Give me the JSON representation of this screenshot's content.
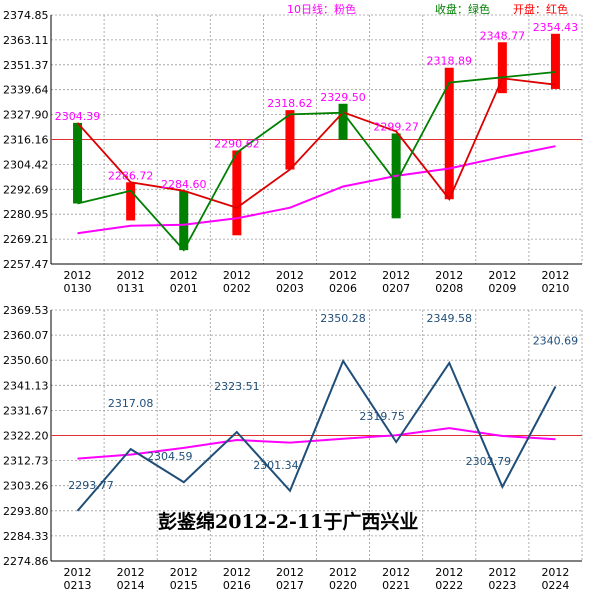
{
  "colors": {
    "bar_up": "#ff0000",
    "bar_down": "#008000",
    "close_line": "#008000",
    "ma_line": "#ff00ff",
    "open_line": "#dd0000",
    "ref_line": "#e03030",
    "value_label": "#ff00ff",
    "bottom_line": "#1f4e79",
    "bottom_label": "#1f4e79",
    "legend_ma": "#ff00ff",
    "legend_close": "#008000",
    "legend_open": "#ff0000",
    "grid": "#999999"
  },
  "chart_data": [
    {
      "type": "bar",
      "title": "",
      "legend": [
        {
          "label": "10日线：粉色",
          "color": "#ff00ff"
        },
        {
          "label": "收盘：绿色",
          "color": "#008000"
        },
        {
          "label": "开盘：红色",
          "color": "#ff0000"
        }
      ],
      "categories": [
        "20120130",
        "20120131",
        "20120201",
        "20120202",
        "20120203",
        "20120206",
        "20120207",
        "20120208",
        "20120209",
        "20120210"
      ],
      "y_ticks": [
        "2374.85",
        "2363.11",
        "2351.37",
        "2339.64",
        "2327.90",
        "2316.16",
        "2304.42",
        "2292.69",
        "2280.95",
        "2269.21",
        "2257.47"
      ],
      "ylim": [
        2257.47,
        2374.85
      ],
      "series": [
        {
          "name": "开盘",
          "values": [
            2324.0,
            2296.0,
            2292.0,
            2284.0,
            2302.0,
            2329.0,
            2320.0,
            2288.0,
            2345.0,
            2342.0
          ]
        },
        {
          "name": "收盘",
          "values": [
            2286.0,
            2292.0,
            2264.0,
            2310.0,
            2328.0,
            2328.8,
            2296.0,
            2343.0,
            2345.5,
            2348.0
          ]
        },
        {
          "name": "10日线",
          "values": [
            2272.0,
            2275.5,
            2276.0,
            2279.0,
            2284.0,
            2294.0,
            2299.0,
            2302.5,
            2308.0,
            2313.0
          ]
        }
      ],
      "bar_top": [
        2324.0,
        2296.0,
        2292.0,
        2311.0,
        2330.0,
        2333.0,
        2319.0,
        2350.0,
        2362.0,
        2366.0
      ],
      "bar_bottom": [
        2286.0,
        2278.0,
        2264.0,
        2271.0,
        2302.0,
        2316.0,
        2279.0,
        2288.0,
        2338.0,
        2340.0
      ],
      "bar_direction": [
        "down",
        "up",
        "down",
        "up",
        "up",
        "down",
        "down",
        "up",
        "up",
        "up"
      ],
      "reference_line": 2316.16,
      "value_labels": [
        "2304.39",
        "2286.72",
        "2284.60",
        "2290.62",
        "2318.62",
        "2329.50",
        "2299.27",
        "2318.89",
        "2348.77",
        "2354.43"
      ]
    },
    {
      "type": "line",
      "title": "",
      "categories": [
        "20120213",
        "20120214",
        "20120215",
        "20120216",
        "20120217",
        "20120220",
        "20120221",
        "20120222",
        "20120223",
        "20120224"
      ],
      "y_ticks": [
        "2369.53",
        "2360.07",
        "2350.60",
        "2341.13",
        "2331.67",
        "2322.20",
        "2312.73",
        "2303.26",
        "2293.80",
        "2284.33",
        "2274.86"
      ],
      "ylim": [
        2274.86,
        2369.53
      ],
      "series": [
        {
          "name": "",
          "values": [
            2293.77,
            2317.08,
            2304.59,
            2323.51,
            2301.34,
            2350.28,
            2319.75,
            2349.58,
            2302.79,
            2340.69
          ]
        },
        {
          "name": "",
          "values": [
            2313.5,
            2315.0,
            2317.5,
            2320.5,
            2319.5,
            2321.0,
            2322.3,
            2325.0,
            2322.0,
            2320.8
          ]
        }
      ],
      "reference_line": 2322.2,
      "value_labels": [
        "2293.77",
        "2317.08",
        "2304.59",
        "2323.51",
        "2301.34",
        "2350.28",
        "2319.75",
        "2349.58",
        "2302.79",
        "2340.69"
      ]
    }
  ],
  "annotation": "彭鉴绵2012-2-11于广西兴业"
}
